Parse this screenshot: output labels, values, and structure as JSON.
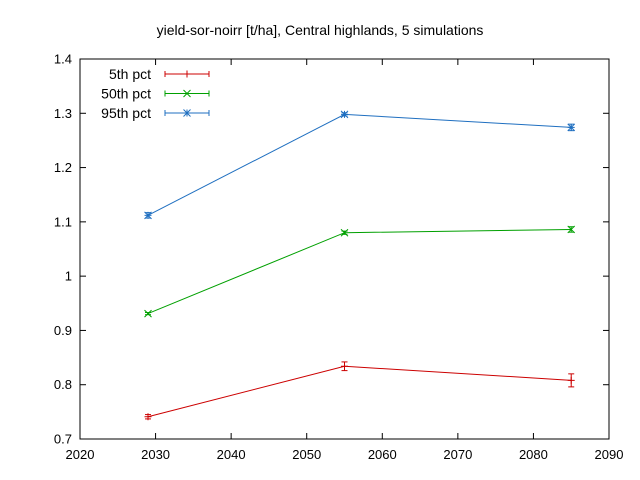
{
  "chart_data": {
    "type": "line",
    "title": "yield-sor-noirr [t/ha], Central highlands, 5 simulations",
    "xlabel": "",
    "ylabel": "",
    "xlim": [
      2020,
      2090
    ],
    "ylim": [
      0.7,
      1.4
    ],
    "xticks": [
      2020,
      2030,
      2040,
      2050,
      2060,
      2070,
      2080,
      2090
    ],
    "yticks": [
      0.7,
      0.8,
      0.9,
      1,
      1.1,
      1.2,
      1.3,
      1.4
    ],
    "xtick_labels": [
      "2020",
      "2030",
      "2040",
      "2050",
      "2060",
      "2070",
      "2080",
      "2090"
    ],
    "ytick_labels": [
      "0.7",
      "0.8",
      "0.9",
      "1",
      "1.1",
      "1.2",
      "1.3",
      "1.4"
    ],
    "grid": false,
    "legend_position": "top-left",
    "x": [
      2029,
      2055,
      2085
    ],
    "series": [
      {
        "name": "5th pct",
        "color": "#cc0000",
        "marker": "plus",
        "values": [
          0.741,
          0.834,
          0.808
        ],
        "errors": [
          0.004,
          0.008,
          0.012
        ]
      },
      {
        "name": "50th pct",
        "color": "#00a000",
        "marker": "cross",
        "values": [
          0.931,
          1.08,
          1.086
        ],
        "errors": [
          0.002,
          0.003,
          0.005
        ]
      },
      {
        "name": "95th pct",
        "color": "#1f6fc0",
        "marker": "star",
        "values": [
          1.112,
          1.298,
          1.274
        ],
        "errors": [
          0.005,
          0.003,
          0.006
        ]
      }
    ]
  }
}
